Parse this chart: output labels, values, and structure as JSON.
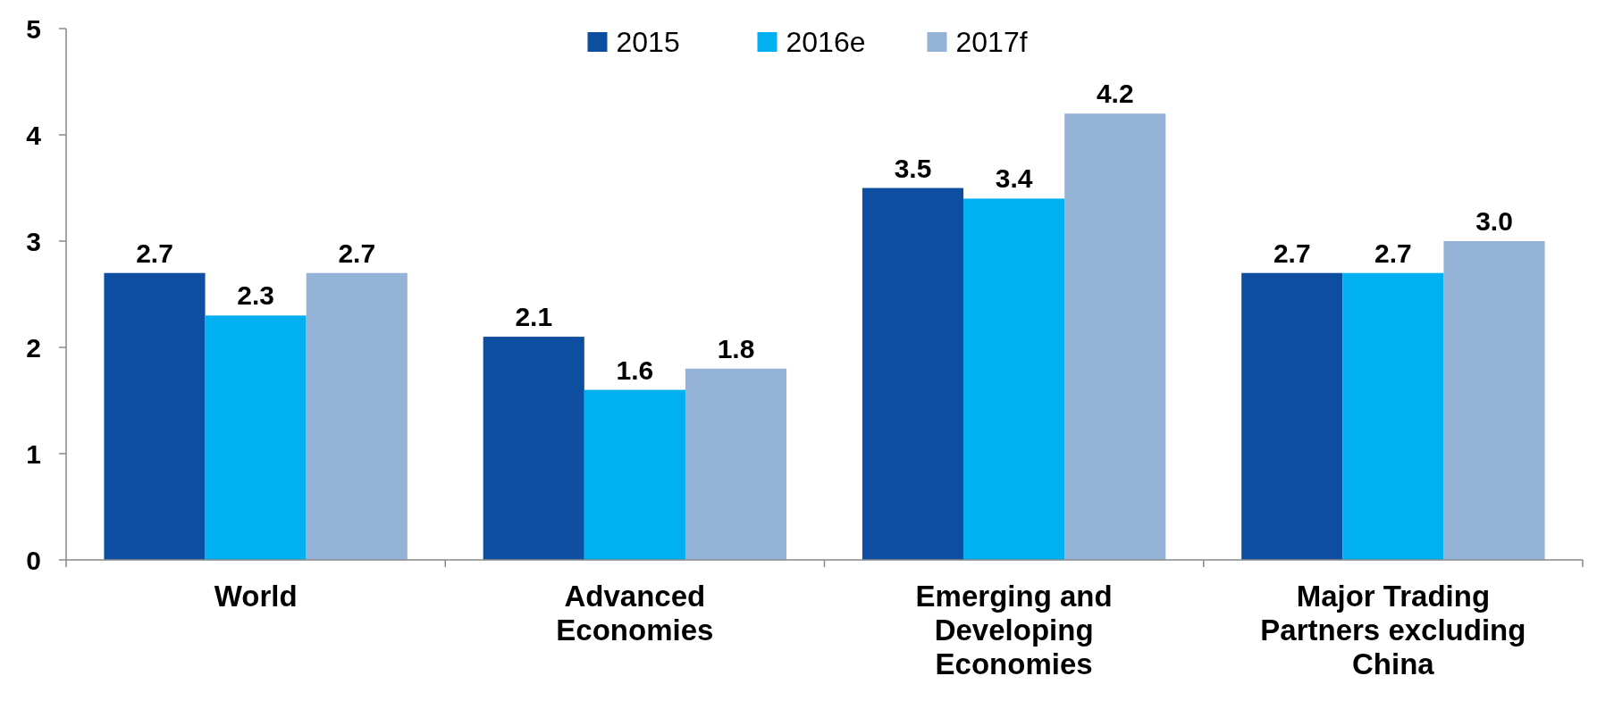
{
  "chart_data": {
    "type": "bar",
    "categories": [
      "World",
      "Advanced Economies",
      "Emerging and Developing Economies",
      "Major Trading Partners excluding China"
    ],
    "series": [
      {
        "name": "2015",
        "color": "#0d4ea0",
        "values": [
          2.7,
          2.1,
          3.5,
          2.7
        ],
        "value_labels": [
          "2.7",
          "2.1",
          "3.5",
          "2.7"
        ]
      },
      {
        "name": "2016e",
        "color": "#00b0f0",
        "values": [
          2.3,
          1.6,
          3.4,
          2.7
        ],
        "value_labels": [
          "2.3",
          "1.6",
          "3.4",
          "2.7"
        ]
      },
      {
        "name": "2017f",
        "color": "#95b3d7",
        "values": [
          2.7,
          1.8,
          4.2,
          3.0
        ],
        "value_labels": [
          "2.7",
          "1.8",
          "4.2",
          "3.0"
        ]
      }
    ],
    "ylim": [
      0,
      5
    ],
    "yticks": [
      0,
      1,
      2,
      3,
      4,
      5
    ],
    "grid": false,
    "legend": "top"
  }
}
